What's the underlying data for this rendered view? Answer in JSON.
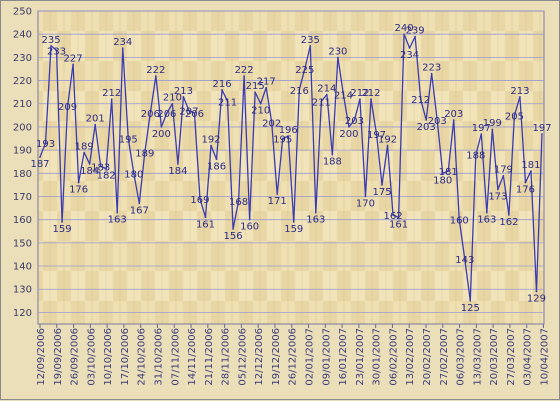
{
  "chart_data": {
    "type": "line",
    "title": "",
    "xlabel": "",
    "ylabel": "",
    "ylim": [
      115,
      250
    ],
    "yticks": [
      120,
      130,
      140,
      150,
      160,
      170,
      180,
      190,
      200,
      210,
      220,
      230,
      240,
      250
    ],
    "grid": true,
    "line_color": "#3b3bb0",
    "xtick_labels": [
      "12/09/2006",
      "19/09/2006",
      "26/09/2006",
      "03/10/2006",
      "10/10/2006",
      "17/10/2006",
      "24/10/2006",
      "31/10/2006",
      "07/11/2006",
      "14/11/2006",
      "21/11/2006",
      "28/11/2006",
      "05/12/2006",
      "12/12/2006",
      "19/12/2006",
      "26/12/2006",
      "02/01/2007",
      "09/01/2007",
      "16/01/2007",
      "23/01/2007",
      "30/01/2007",
      "06/02/2007",
      "13/02/2007",
      "20/02/2007",
      "27/02/2007",
      "06/03/2007",
      "13/03/2007",
      "20/03/2007",
      "27/03/2007",
      "03/04/2007",
      "10/04/2007"
    ],
    "series": [
      {
        "values": [
          187,
          193,
          235,
          233,
          159,
          209,
          227,
          176,
          189,
          184,
          201,
          183,
          182,
          212,
          163,
          234,
          195,
          180,
          167,
          189,
          206,
          222,
          200,
          206,
          210,
          184,
          213,
          207,
          206,
          169,
          161,
          192,
          186,
          216,
          211,
          156,
          168,
          222,
          160,
          215,
          210,
          217,
          202,
          171,
          195,
          196,
          159,
          216,
          225,
          235,
          163,
          211,
          214,
          188,
          230,
          214,
          200,
          203,
          212,
          170,
          212,
          197,
          175,
          192,
          162,
          161,
          240,
          234,
          239,
          212,
          203,
          223,
          203,
          180,
          181,
          203,
          160,
          143,
          125,
          188,
          197,
          163,
          199,
          173,
          179,
          162,
          205,
          213,
          176,
          181,
          129,
          197
        ]
      }
    ]
  }
}
